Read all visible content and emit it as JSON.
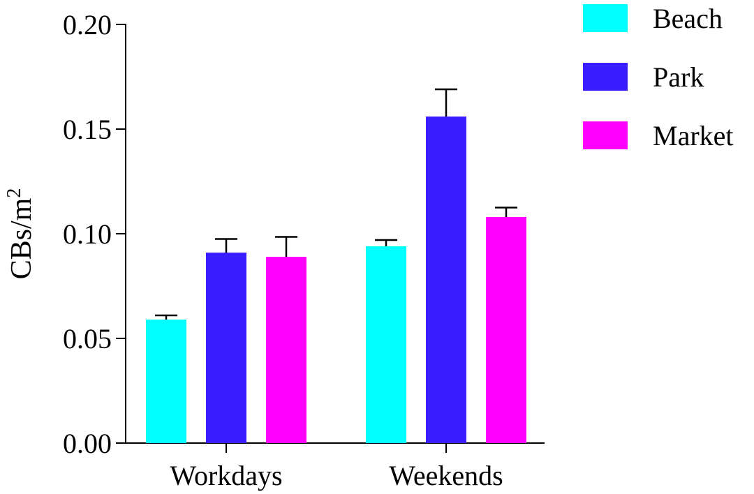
{
  "chart_data": {
    "type": "bar",
    "categories": [
      "Workdays",
      "Weekends"
    ],
    "series": [
      {
        "name": "Beach",
        "color": "#00FFFF",
        "values": [
          0.059,
          0.094
        ],
        "errors": [
          0.002,
          0.003
        ]
      },
      {
        "name": "Park",
        "color": "#3A1EFF",
        "values": [
          0.091,
          0.156
        ],
        "errors": [
          0.0065,
          0.013
        ]
      },
      {
        "name": "Market",
        "color": "#FF00FF",
        "values": [
          0.089,
          0.108
        ],
        "errors": [
          0.0095,
          0.0045
        ]
      }
    ],
    "ylabel": {
      "base": "CBs/m",
      "sup": "2"
    },
    "ylim": [
      0,
      0.2
    ],
    "yticks": [
      "0.00",
      "0.05",
      "0.10",
      "0.15",
      "0.20"
    ],
    "yticks_values": [
      0,
      0.05,
      0.1,
      0.15,
      0.2
    ],
    "grid": false,
    "legend_position": "top-right"
  }
}
